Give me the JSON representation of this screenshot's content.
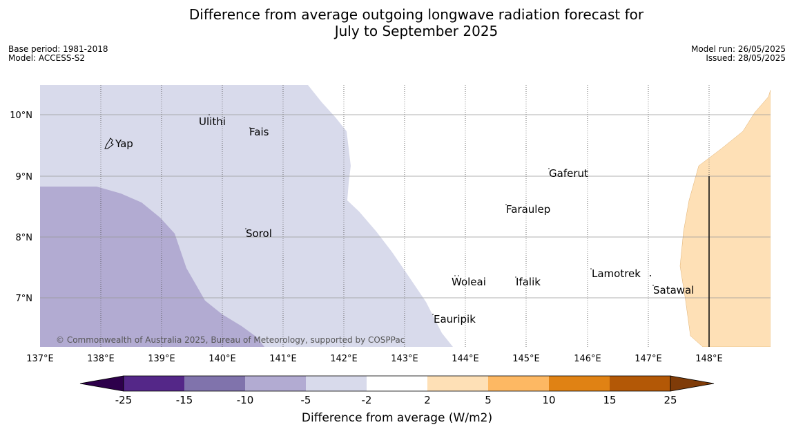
{
  "header": {
    "title_line1": "Difference from average outgoing longwave radiation forecast for",
    "title_line2": "July to September 2025",
    "base_period": "Base period: 1981-2018",
    "model": "Model: ACCESS-S2",
    "model_run": "Model run: 26/05/2025",
    "issued": "Issued: 28/05/2025"
  },
  "map": {
    "lon_ticks": [
      "137°E",
      "138°E",
      "139°E",
      "140°E",
      "141°E",
      "142°E",
      "143°E",
      "144°E",
      "145°E",
      "146°E",
      "147°E",
      "148°E"
    ],
    "lat_ticks": [
      "10°N",
      "9°N",
      "8°N",
      "7°N"
    ],
    "places": [
      {
        "name": "Ulithi"
      },
      {
        "name": "Fais"
      },
      {
        "name": "Yap"
      },
      {
        "name": "Gaferut"
      },
      {
        "name": "Faraulep"
      },
      {
        "name": "Sorol"
      },
      {
        "name": "Lamotrek"
      },
      {
        "name": "Woleai"
      },
      {
        "name": "Ifalik"
      },
      {
        "name": "Satawal"
      },
      {
        "name": "Eauripik"
      }
    ],
    "copyright": "© Commonwealth of Australia 2025, Bureau of Meteorology, supported by COSPPac"
  },
  "colorbar": {
    "labels": [
      "-25",
      "-15",
      "-10",
      "-5",
      "-2",
      "2",
      "5",
      "10",
      "15",
      "25"
    ],
    "title": "Difference from average (W/m2)",
    "colors": {
      "under": "#2d004b",
      "c1": "#542788",
      "c2": "#8073ac",
      "c3": "#b2abd2",
      "c4": "#d8daeb",
      "c5": "#ffffff",
      "c6": "#fee0b6",
      "c7": "#fdb863",
      "c8": "#e08214",
      "c9": "#b35806",
      "over": "#7f3b08"
    }
  }
}
